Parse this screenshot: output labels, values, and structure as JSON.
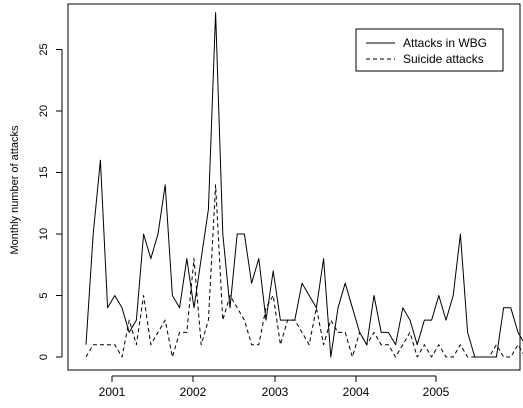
{
  "chart_data": {
    "type": "line",
    "ylabel": "Monthly number of attacks",
    "xlabel": "",
    "x_tick_labels": [
      "2001",
      "2002",
      "2003",
      "2004",
      "2005"
    ],
    "y_tick_labels": [
      "0",
      "5",
      "10",
      "15",
      "20",
      "25"
    ],
    "ylim": [
      0,
      28
    ],
    "legend_position": "top-right",
    "grid": false,
    "series": [
      {
        "name": "Attacks in WBG",
        "line_style": "solid",
        "values": [
          1,
          10,
          16,
          4,
          5,
          4,
          2,
          3,
          10,
          8,
          10,
          14,
          5,
          4,
          8,
          4,
          8,
          12,
          28,
          10,
          4,
          10,
          10,
          6,
          8,
          3,
          7,
          3,
          3,
          3,
          6,
          5,
          4,
          8,
          0,
          4,
          6,
          4,
          2,
          1,
          5,
          2,
          2,
          1,
          4,
          3,
          1,
          3,
          3,
          5,
          3,
          5,
          10,
          2,
          0,
          0,
          0,
          0,
          4,
          4,
          2,
          1,
          1,
          2,
          3
        ]
      },
      {
        "name": "Suicide attacks",
        "line_style": "dashed",
        "values": [
          0,
          1,
          1,
          1,
          1,
          0,
          3,
          1,
          5,
          1,
          2,
          3,
          0,
          2,
          2,
          8,
          1,
          3,
          14,
          3,
          5,
          4,
          3,
          1,
          1,
          4,
          5,
          1,
          3,
          3,
          2,
          1,
          4,
          1,
          3,
          2,
          2,
          0,
          2,
          1,
          2,
          1,
          1,
          0,
          1,
          2,
          0,
          1,
          0,
          1,
          0,
          0,
          1,
          0,
          0,
          0,
          0,
          1,
          0,
          0,
          1,
          0,
          0,
          1,
          1
        ]
      }
    ]
  }
}
